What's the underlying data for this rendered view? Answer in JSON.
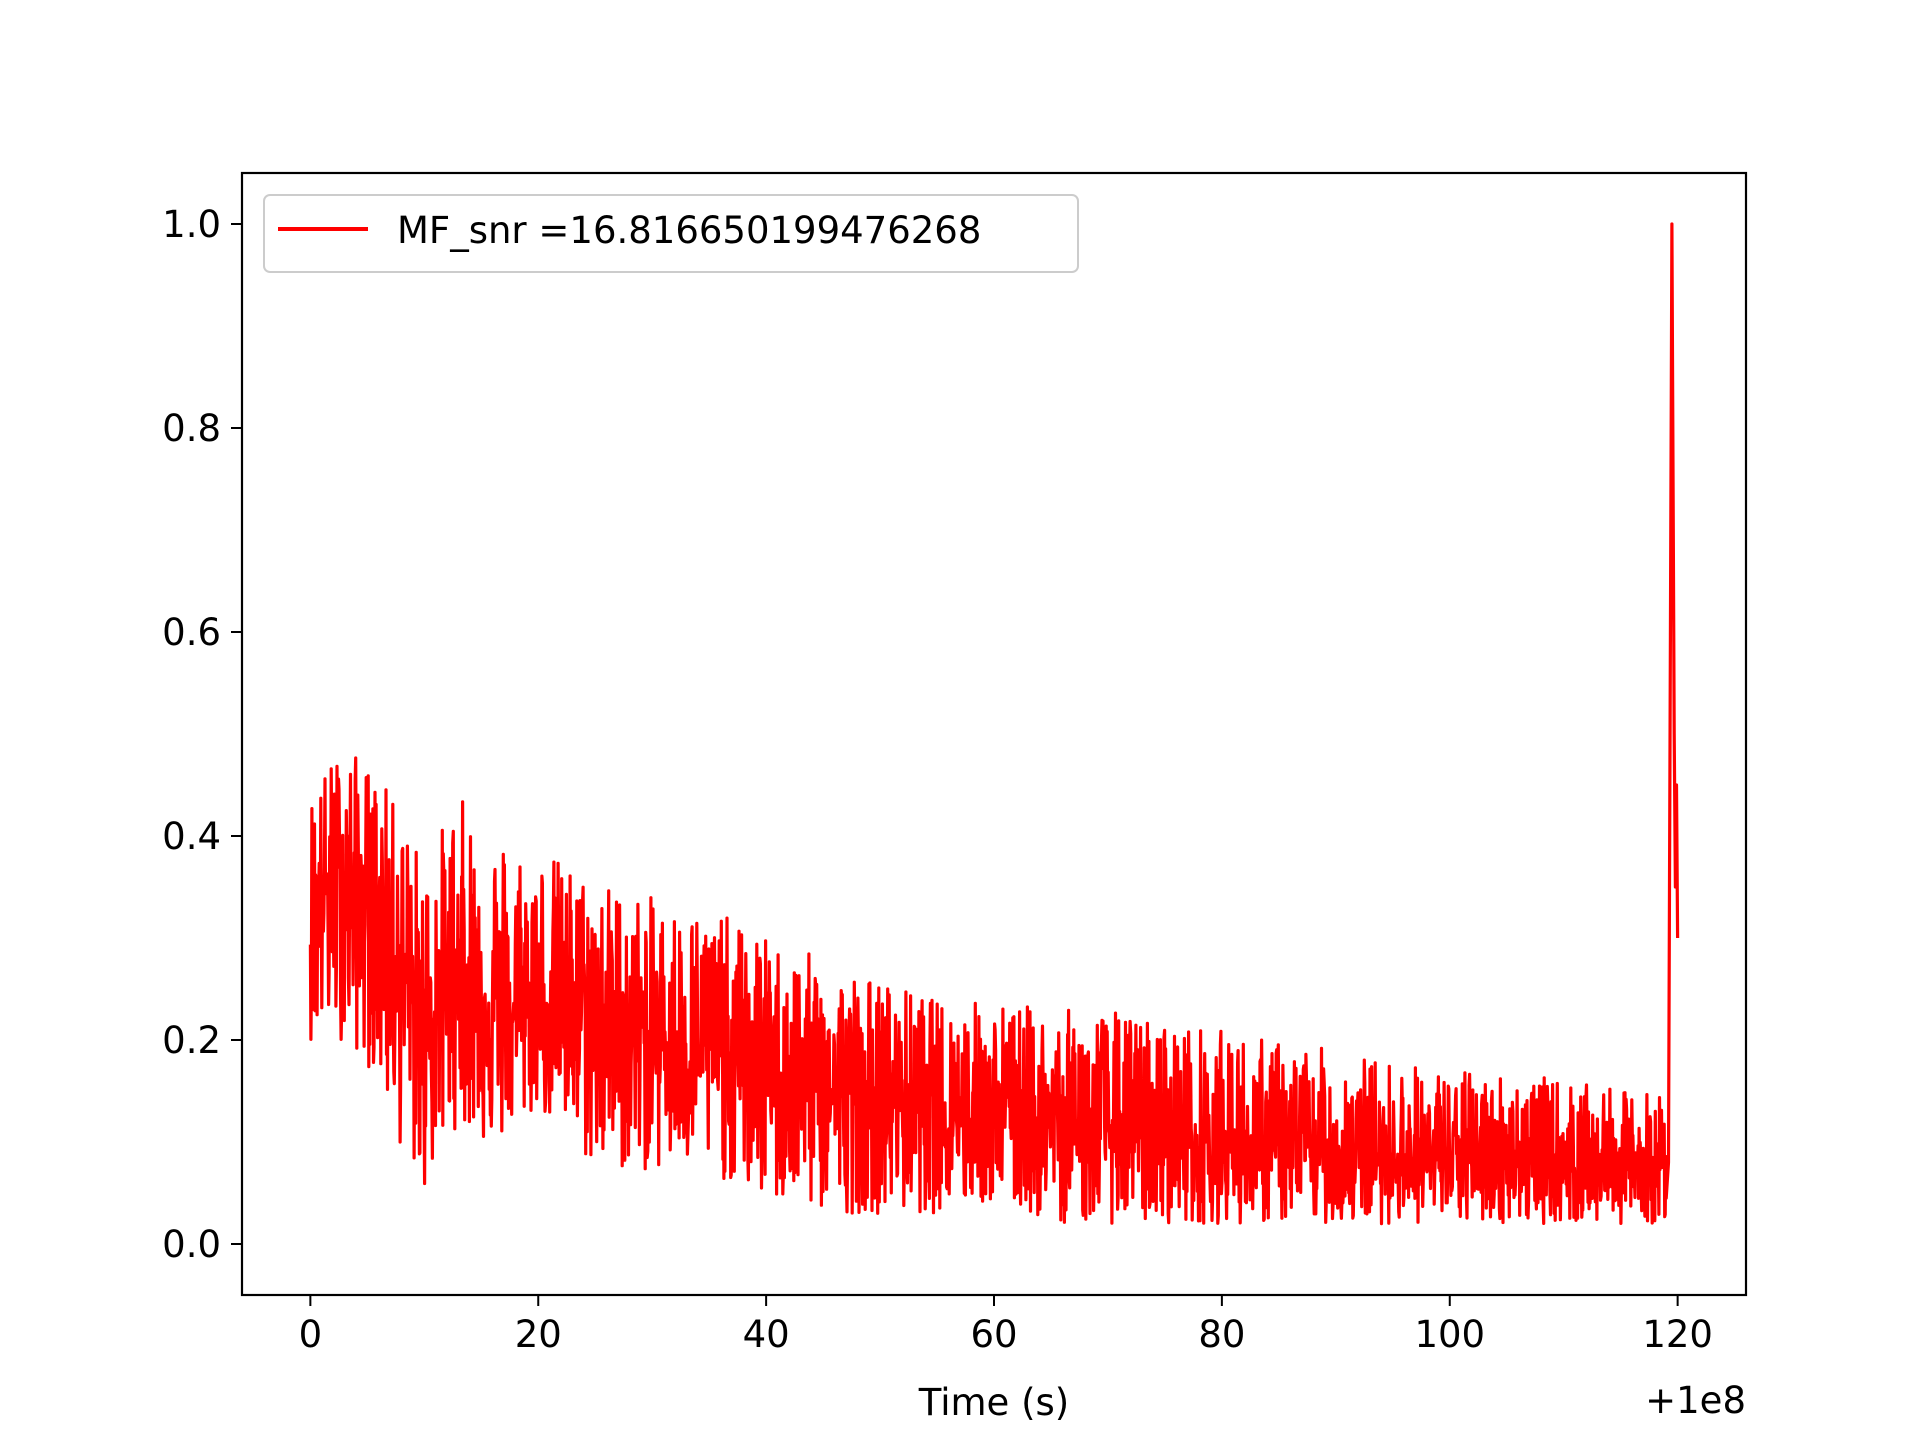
{
  "chart_data": {
    "type": "line",
    "xlabel": "Time (s)",
    "ylabel": "",
    "x_offset_label": "+1e8",
    "xlim": [
      -6,
      126
    ],
    "ylim": [
      -0.05,
      1.05
    ],
    "xticks": [
      0,
      20,
      40,
      60,
      80,
      100,
      120
    ],
    "yticks": [
      0.0,
      0.2,
      0.4,
      0.6,
      0.8,
      1.0
    ],
    "xtick_labels": [
      "0",
      "20",
      "40",
      "60",
      "80",
      "100",
      "120"
    ],
    "ytick_labels": [
      "0.0",
      "0.2",
      "0.4",
      "0.6",
      "0.8",
      "1.0"
    ],
    "grid": false,
    "legend_position": "upper left",
    "series": [
      {
        "name": "MF_snr =16.816650199476268",
        "color": "#ff0000",
        "x": [
          0,
          2,
          5,
          8,
          10,
          12,
          15,
          18,
          20,
          25,
          30,
          35,
          40,
          45,
          50,
          55,
          60,
          65,
          70,
          75,
          80,
          85,
          90,
          95,
          100,
          105,
          110,
          115,
          118,
          119.2,
          119.5,
          119.7,
          119.8,
          119.9,
          120
        ],
        "values": [
          0.31,
          0.36,
          0.33,
          0.28,
          0.2,
          0.26,
          0.24,
          0.22,
          0.24,
          0.22,
          0.2,
          0.19,
          0.17,
          0.15,
          0.14,
          0.13,
          0.12,
          0.12,
          0.11,
          0.1,
          0.095,
          0.09,
          0.085,
          0.085,
          0.08,
          0.08,
          0.075,
          0.075,
          0.07,
          0.08,
          1.0,
          0.5,
          0.35,
          0.45,
          0.3
        ],
        "band_x": [
          0,
          3,
          6,
          8,
          10,
          13,
          16,
          20,
          25,
          30,
          35,
          40,
          45,
          50,
          55,
          60,
          65,
          70,
          75,
          80,
          85,
          90,
          95,
          100,
          105,
          110,
          115,
          119
        ],
        "band_low": [
          0.2,
          0.2,
          0.16,
          0.09,
          0.05,
          0.12,
          0.09,
          0.13,
          0.07,
          0.07,
          0.07,
          0.04,
          0.03,
          0.03,
          0.03,
          0.04,
          0.02,
          0.02,
          0.02,
          0.02,
          0.02,
          0.02,
          0.02,
          0.02,
          0.02,
          0.02,
          0.02,
          0.02
        ],
        "band_high": [
          0.45,
          0.49,
          0.46,
          0.42,
          0.38,
          0.44,
          0.41,
          0.39,
          0.36,
          0.34,
          0.33,
          0.3,
          0.28,
          0.26,
          0.24,
          0.24,
          0.23,
          0.23,
          0.22,
          0.21,
          0.2,
          0.19,
          0.18,
          0.17,
          0.17,
          0.16,
          0.15,
          0.15
        ]
      }
    ]
  }
}
